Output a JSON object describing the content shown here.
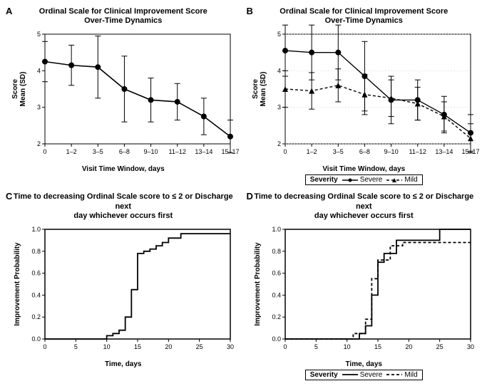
{
  "figure_width": 683,
  "figure_height": 538,
  "colors": {
    "bg": "#ffffff",
    "axis": "#000000",
    "grid": "#cccccc",
    "series_main": "#000000",
    "series_alt": "#444444"
  },
  "fonts": {
    "title_pt": 11,
    "axis_label_pt": 10,
    "tick_pt": 9,
    "panel_label_pt": 13
  },
  "panelA": {
    "label": "A",
    "title_line1": "Ordinal Scale for Clinical Improvement Score",
    "title_line2": "Over-Time Dynamics",
    "type": "line-errorbar",
    "x_categories": [
      "0",
      "1–2",
      "3–5",
      "6–8",
      "9–10",
      "11–12",
      "13–14",
      "15–17"
    ],
    "y_label_line1": "Score",
    "y_label_line2": "Mean (SD)",
    "x_label": "Visit Time Window, days",
    "ylim": [
      2,
      5
    ],
    "yticks": [
      2,
      3,
      4,
      5
    ],
    "series": {
      "mean": [
        4.25,
        4.15,
        4.1,
        3.5,
        3.2,
        3.15,
        2.75,
        2.2
      ],
      "sd": [
        0.55,
        0.55,
        0.85,
        0.9,
        0.6,
        0.5,
        0.5,
        0.45
      ]
    },
    "line_width": 1.6,
    "marker": "circle",
    "marker_size": 4,
    "color": "#000000",
    "errorbar_cap": 4
  },
  "panelB": {
    "label": "B",
    "title_line1": "Ordinal Scale for Clinical Improvement Score",
    "title_line2": "Over-Time Dynamics",
    "type": "line-errorbar-2series",
    "x_categories": [
      "0",
      "1–2",
      "3–5",
      "6–8",
      "9–10",
      "11–12",
      "13–14",
      "15–17"
    ],
    "y_label_line1": "Score",
    "y_label_line2": "Mean (SD)",
    "x_label": "Visit Time Window, days",
    "ylim": [
      2,
      5
    ],
    "yticks": [
      2,
      3,
      4,
      5
    ],
    "legend_title": "Severity",
    "series1": {
      "name": "Severe",
      "mean": [
        4.55,
        4.5,
        4.5,
        3.85,
        3.2,
        3.2,
        2.8,
        2.3
      ],
      "sd": [
        0.7,
        0.75,
        0.75,
        0.95,
        0.65,
        0.55,
        0.5,
        0.5
      ],
      "dash": "solid",
      "marker": "circle",
      "color": "#000000"
    },
    "series2": {
      "name": "Mild",
      "mean": [
        3.5,
        3.45,
        3.6,
        3.35,
        3.25,
        3.1,
        2.75,
        2.15
      ],
      "sd": [
        0.5,
        0.5,
        0.45,
        0.55,
        0.5,
        0.45,
        0.4,
        0.4
      ],
      "dash": "4,3",
      "marker": "triangle",
      "color": "#000000"
    },
    "line_width": 1.4,
    "marker_size": 4,
    "errorbar_cap": 4,
    "grid_y": true
  },
  "panelC": {
    "label": "C",
    "title": "Time to decreasing Ordinal Scale score to ≤ 2 or Discharge next\nday whichever occurs first",
    "type": "step",
    "x_label": "Time, days",
    "y_label": "Improvement Probability",
    "xlim": [
      0,
      30
    ],
    "xticks": [
      0,
      5,
      10,
      15,
      20,
      25,
      30
    ],
    "ylim": [
      0,
      1
    ],
    "yticks": [
      0.0,
      0.2,
      0.4,
      0.6,
      0.8,
      1.0
    ],
    "series": {
      "x": [
        0,
        9,
        10,
        11,
        12,
        13,
        14,
        15,
        16,
        17,
        18,
        19,
        20,
        22,
        30
      ],
      "y": [
        0.0,
        0.0,
        0.03,
        0.05,
        0.08,
        0.2,
        0.45,
        0.78,
        0.8,
        0.82,
        0.85,
        0.88,
        0.92,
        0.96,
        0.96
      ]
    },
    "line_width": 1.8,
    "color": "#000000"
  },
  "panelD": {
    "label": "D",
    "title": "Time to decreasing Ordinal Scale score to ≤ 2 or Discharge next\nday whichever occurs first",
    "type": "step-2series",
    "x_label": "Time, days",
    "y_label": "Improvement Probability",
    "xlim": [
      0,
      30
    ],
    "xticks": [
      0,
      5,
      10,
      15,
      20,
      25,
      30
    ],
    "ylim": [
      0,
      1
    ],
    "yticks": [
      0.0,
      0.2,
      0.4,
      0.6,
      0.8,
      1.0
    ],
    "legend_title": "Severity",
    "series1": {
      "name": "Severe",
      "x": [
        0,
        11,
        12,
        13,
        14,
        15,
        16,
        18,
        20,
        25,
        30
      ],
      "y": [
        0.0,
        0.0,
        0.05,
        0.12,
        0.4,
        0.7,
        0.78,
        0.9,
        0.9,
        1.0,
        1.0
      ],
      "dash": "solid",
      "color": "#000000"
    },
    "series2": {
      "name": "Mild",
      "x": [
        0,
        9,
        11,
        13,
        14,
        15,
        17,
        19,
        22,
        30
      ],
      "y": [
        0.0,
        0.0,
        0.05,
        0.18,
        0.55,
        0.72,
        0.85,
        0.88,
        0.88,
        0.88
      ],
      "dash": "4,3",
      "color": "#000000"
    },
    "line_width": 1.8
  }
}
